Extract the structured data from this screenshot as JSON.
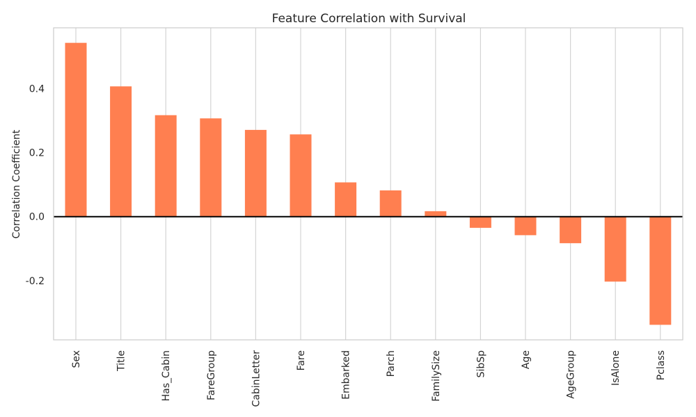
{
  "chart_data": {
    "type": "bar",
    "title": "Feature Correlation with Survival",
    "xlabel": "",
    "ylabel": "Correlation Coefficient",
    "categories": [
      "Sex",
      "Title",
      "Has_Cabin",
      "FareGroup",
      "CabinLetter",
      "Fare",
      "Embarked",
      "Parch",
      "FamilySize",
      "SibSp",
      "Age",
      "AgeGroup",
      "IsAlone",
      "Pclass"
    ],
    "values": [
      0.543,
      0.407,
      0.317,
      0.307,
      0.271,
      0.257,
      0.107,
      0.082,
      0.017,
      -0.035,
      -0.058,
      -0.083,
      -0.203,
      -0.338
    ],
    "ylim": [
      -0.385,
      0.59
    ],
    "yticks": [
      -0.2,
      0.0,
      0.2,
      0.4
    ],
    "ytick_labels": [
      "-0.2",
      "0.0",
      "0.2",
      "0.4"
    ],
    "bar_color": "#ff7f50",
    "zero_line_color": "#000000",
    "grid": "vertical",
    "legend": "none"
  }
}
